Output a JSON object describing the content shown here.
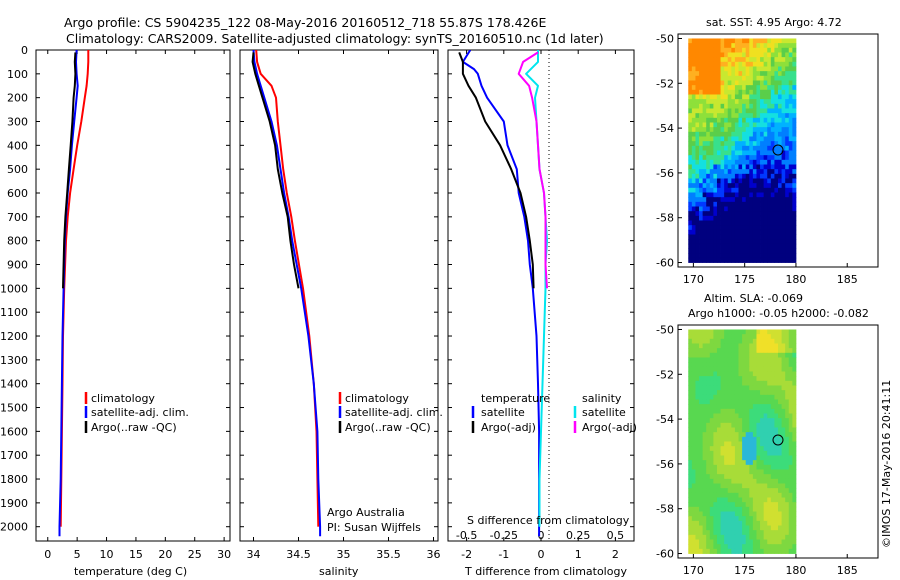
{
  "header": {
    "title_line1": "Argo profile: CS 5904235_122 08-May-2016 20160512_718 55.87S 178.426E",
    "title_line2": "Climatology: CARS2009. Satellite-adjusted climatology: synTS_20160510.nc (1d later)"
  },
  "colors": {
    "climatology": "#ff0000",
    "satellite": "#0000ff",
    "argo": "#000000",
    "sat_salinity": "#00e5ee",
    "argo_salinity_adj": "#ff00ff"
  },
  "depth_ticks": [
    "0",
    "100",
    "200",
    "300",
    "400",
    "500",
    "600",
    "700",
    "800",
    "900",
    "1000",
    "1100",
    "1200",
    "1300",
    "1400",
    "1500",
    "1600",
    "1700",
    "1800",
    "1900",
    "2000"
  ],
  "chart_data": [
    {
      "type": "line",
      "id": "temperature",
      "xlabel": "temperature (deg C)",
      "xlim": [
        -2,
        31
      ],
      "ylim": [
        2060,
        0
      ],
      "x_ticks": [
        "0",
        "5",
        "10",
        "15",
        "20",
        "25",
        "30"
      ],
      "legend": [
        "climatology",
        "satellite-adj. clim.",
        "Argo(..raw -QC)"
      ],
      "series": [
        {
          "name": "climatology",
          "color": "#ff0000",
          "depth": [
            0,
            50,
            100,
            150,
            200,
            300,
            400,
            500,
            600,
            700,
            800,
            1000,
            1200,
            1400,
            1600,
            1800,
            2000
          ],
          "values": [
            6.9,
            6.9,
            6.8,
            6.6,
            6.3,
            5.7,
            5.0,
            4.4,
            3.8,
            3.4,
            3.1,
            2.8,
            2.6,
            2.5,
            2.4,
            2.3,
            2.2
          ]
        },
        {
          "name": "satellite-adj. clim.",
          "color": "#0000ff",
          "depth": [
            0,
            50,
            100,
            150,
            200,
            300,
            400,
            500,
            600,
            700,
            800,
            1000,
            1200,
            1400,
            1600,
            1800,
            2000,
            2040
          ],
          "values": [
            4.9,
            4.8,
            4.9,
            5.1,
            4.9,
            4.5,
            4.1,
            3.8,
            3.4,
            3.1,
            2.9,
            2.7,
            2.5,
            2.4,
            2.3,
            2.2,
            2.0,
            2.0
          ]
        },
        {
          "name": "Argo(..raw -QC)",
          "color": "#000000",
          "depth": [
            10,
            50,
            100,
            150,
            200,
            300,
            400,
            500,
            600,
            700,
            800,
            900,
            1000
          ],
          "values": [
            4.7,
            4.6,
            4.7,
            4.6,
            4.4,
            4.2,
            3.9,
            3.6,
            3.3,
            3.0,
            2.8,
            2.7,
            2.6
          ]
        }
      ]
    },
    {
      "type": "line",
      "id": "salinity",
      "xlabel": "salinity",
      "xlim": [
        33.85,
        36.05
      ],
      "ylim": [
        2060,
        0
      ],
      "x_ticks": [
        "34",
        "34.5",
        "35",
        "35.5",
        "36"
      ],
      "legend": [
        "climatology",
        "satellite-adj. clim.",
        "Argo(..raw -QC)"
      ],
      "annotation_1": "Argo Australia",
      "annotation_2": "PI: Susan Wijffels",
      "series": [
        {
          "name": "climatology",
          "color": "#ff0000",
          "depth": [
            0,
            50,
            100,
            150,
            200,
            300,
            400,
            500,
            600,
            700,
            800,
            1000,
            1200,
            1400,
            1600,
            1800,
            2000
          ],
          "values": [
            34.03,
            34.04,
            34.08,
            34.2,
            34.25,
            34.27,
            34.3,
            34.33,
            34.37,
            34.42,
            34.46,
            34.55,
            34.62,
            34.67,
            34.7,
            34.71,
            34.72
          ]
        },
        {
          "name": "satellite-adj. clim.",
          "color": "#0000ff",
          "depth": [
            0,
            50,
            100,
            150,
            200,
            300,
            400,
            500,
            600,
            700,
            800,
            1000,
            1200,
            1400,
            1600,
            1800,
            2000,
            2040
          ],
          "values": [
            34.0,
            34.01,
            34.04,
            34.08,
            34.12,
            34.2,
            34.26,
            34.3,
            34.34,
            34.39,
            34.43,
            34.53,
            34.61,
            34.67,
            34.71,
            34.72,
            34.74,
            34.74
          ]
        },
        {
          "name": "Argo(..raw -QC)",
          "color": "#000000",
          "depth": [
            10,
            50,
            100,
            150,
            200,
            300,
            400,
            500,
            600,
            700,
            800,
            900,
            1000
          ],
          "values": [
            34.0,
            33.99,
            34.02,
            34.06,
            34.1,
            34.18,
            34.24,
            34.27,
            34.32,
            34.38,
            34.41,
            34.45,
            34.5
          ]
        }
      ]
    },
    {
      "type": "line",
      "id": "difference",
      "xlabel": "T difference from climatology",
      "xlabel_top": "S difference from climatology",
      "xlim": [
        -2.5,
        2.5
      ],
      "ylim": [
        2060,
        0
      ],
      "x_ticks": [
        "-2",
        "-1",
        "0",
        "1",
        "2"
      ],
      "x_ticks_top": [
        "-0.5",
        "-0.25",
        "0",
        "0.25",
        "0.5"
      ],
      "legend_temperature_title": "temperature",
      "legend_salinity_title": "salinity",
      "legend": [
        "satellite",
        "Argo(-adj)",
        "satellite",
        "Argo(-adj)"
      ],
      "series": [
        {
          "name": "satellite",
          "color": "#0000ff",
          "depth": [
            0,
            50,
            80,
            100,
            150,
            200,
            300,
            400,
            500,
            600,
            700,
            800,
            900,
            1000,
            1200,
            1400,
            1600,
            1800,
            2000,
            2040
          ],
          "values": [
            -1.9,
            -2.1,
            -1.8,
            -1.7,
            -1.6,
            -1.45,
            -1.0,
            -0.9,
            -0.65,
            -0.6,
            -0.45,
            -0.35,
            -0.3,
            -0.22,
            -0.12,
            -0.08,
            -0.05,
            -0.05,
            -0.05,
            -0.05
          ]
        },
        {
          "name": "Argo(-adj)",
          "color": "#000000",
          "depth": [
            10,
            50,
            100,
            150,
            200,
            300,
            400,
            500,
            600,
            700,
            800,
            900,
            1000
          ],
          "values": [
            -2.2,
            -2.1,
            -2.1,
            -1.95,
            -1.75,
            -1.5,
            -1.1,
            -0.8,
            -0.55,
            -0.4,
            -0.3,
            -0.22,
            -0.2
          ]
        },
        {
          "name": "satellite",
          "color": "#00e5ee",
          "depth": [
            0,
            50,
            100,
            150,
            200,
            300,
            400,
            500,
            600,
            700,
            800,
            900,
            1000,
            1200,
            1400,
            1600,
            1800,
            2000
          ],
          "values": [
            -0.02,
            -0.02,
            -0.1,
            -0.02,
            -0.04,
            -0.03,
            -0.02,
            -0.01,
            0.02,
            0.03,
            0.04,
            0.03,
            0.03,
            0.02,
            0.01,
            0.0,
            -0.01,
            -0.01
          ]
        },
        {
          "name": "Argo(-adj)",
          "color": "#ff00ff",
          "depth": [
            10,
            50,
            100,
            150,
            200,
            300,
            400,
            500,
            600,
            700,
            800,
            900,
            1000
          ],
          "values": [
            -0.02,
            -0.12,
            -0.15,
            -0.08,
            -0.06,
            -0.03,
            -0.02,
            -0.01,
            0.02,
            0.03,
            0.03,
            0.03,
            0.04
          ]
        }
      ]
    },
    {
      "type": "heatmap",
      "id": "sst_map",
      "title": "sat. SST: 4.95 Argo: 4.72",
      "x_ticks": [
        "170",
        "175",
        "180",
        "185"
      ],
      "y_ticks": [
        "-50",
        "-52",
        "-54",
        "-56",
        "-58",
        "-60"
      ],
      "xlim": [
        168.5,
        188
      ],
      "ylim": [
        -60.2,
        -49.8
      ],
      "data_extent": {
        "lon": [
          169.5,
          180
        ],
        "lat": [
          -60,
          -50
        ]
      },
      "marker": {
        "lon": 178.4,
        "lat": -55.9
      }
    },
    {
      "type": "heatmap",
      "id": "sla_map",
      "title": "Altim. SLA: -0.069",
      "subtitle": "Argo h1000: -0.05 h2000: -0.082",
      "x_ticks": [
        "170",
        "175",
        "180",
        "185"
      ],
      "y_ticks": [
        "-50",
        "-52",
        "-54",
        "-56",
        "-58",
        "-60"
      ],
      "xlim": [
        168.5,
        188
      ],
      "ylim": [
        -60.2,
        -49.8
      ],
      "data_extent": {
        "lon": [
          169.5,
          180
        ],
        "lat": [
          -60,
          -50
        ]
      },
      "marker": {
        "lon": 178.4,
        "lat": -55.9
      }
    }
  ],
  "credit": "©IMOS 17-May-2016 20:41:11"
}
